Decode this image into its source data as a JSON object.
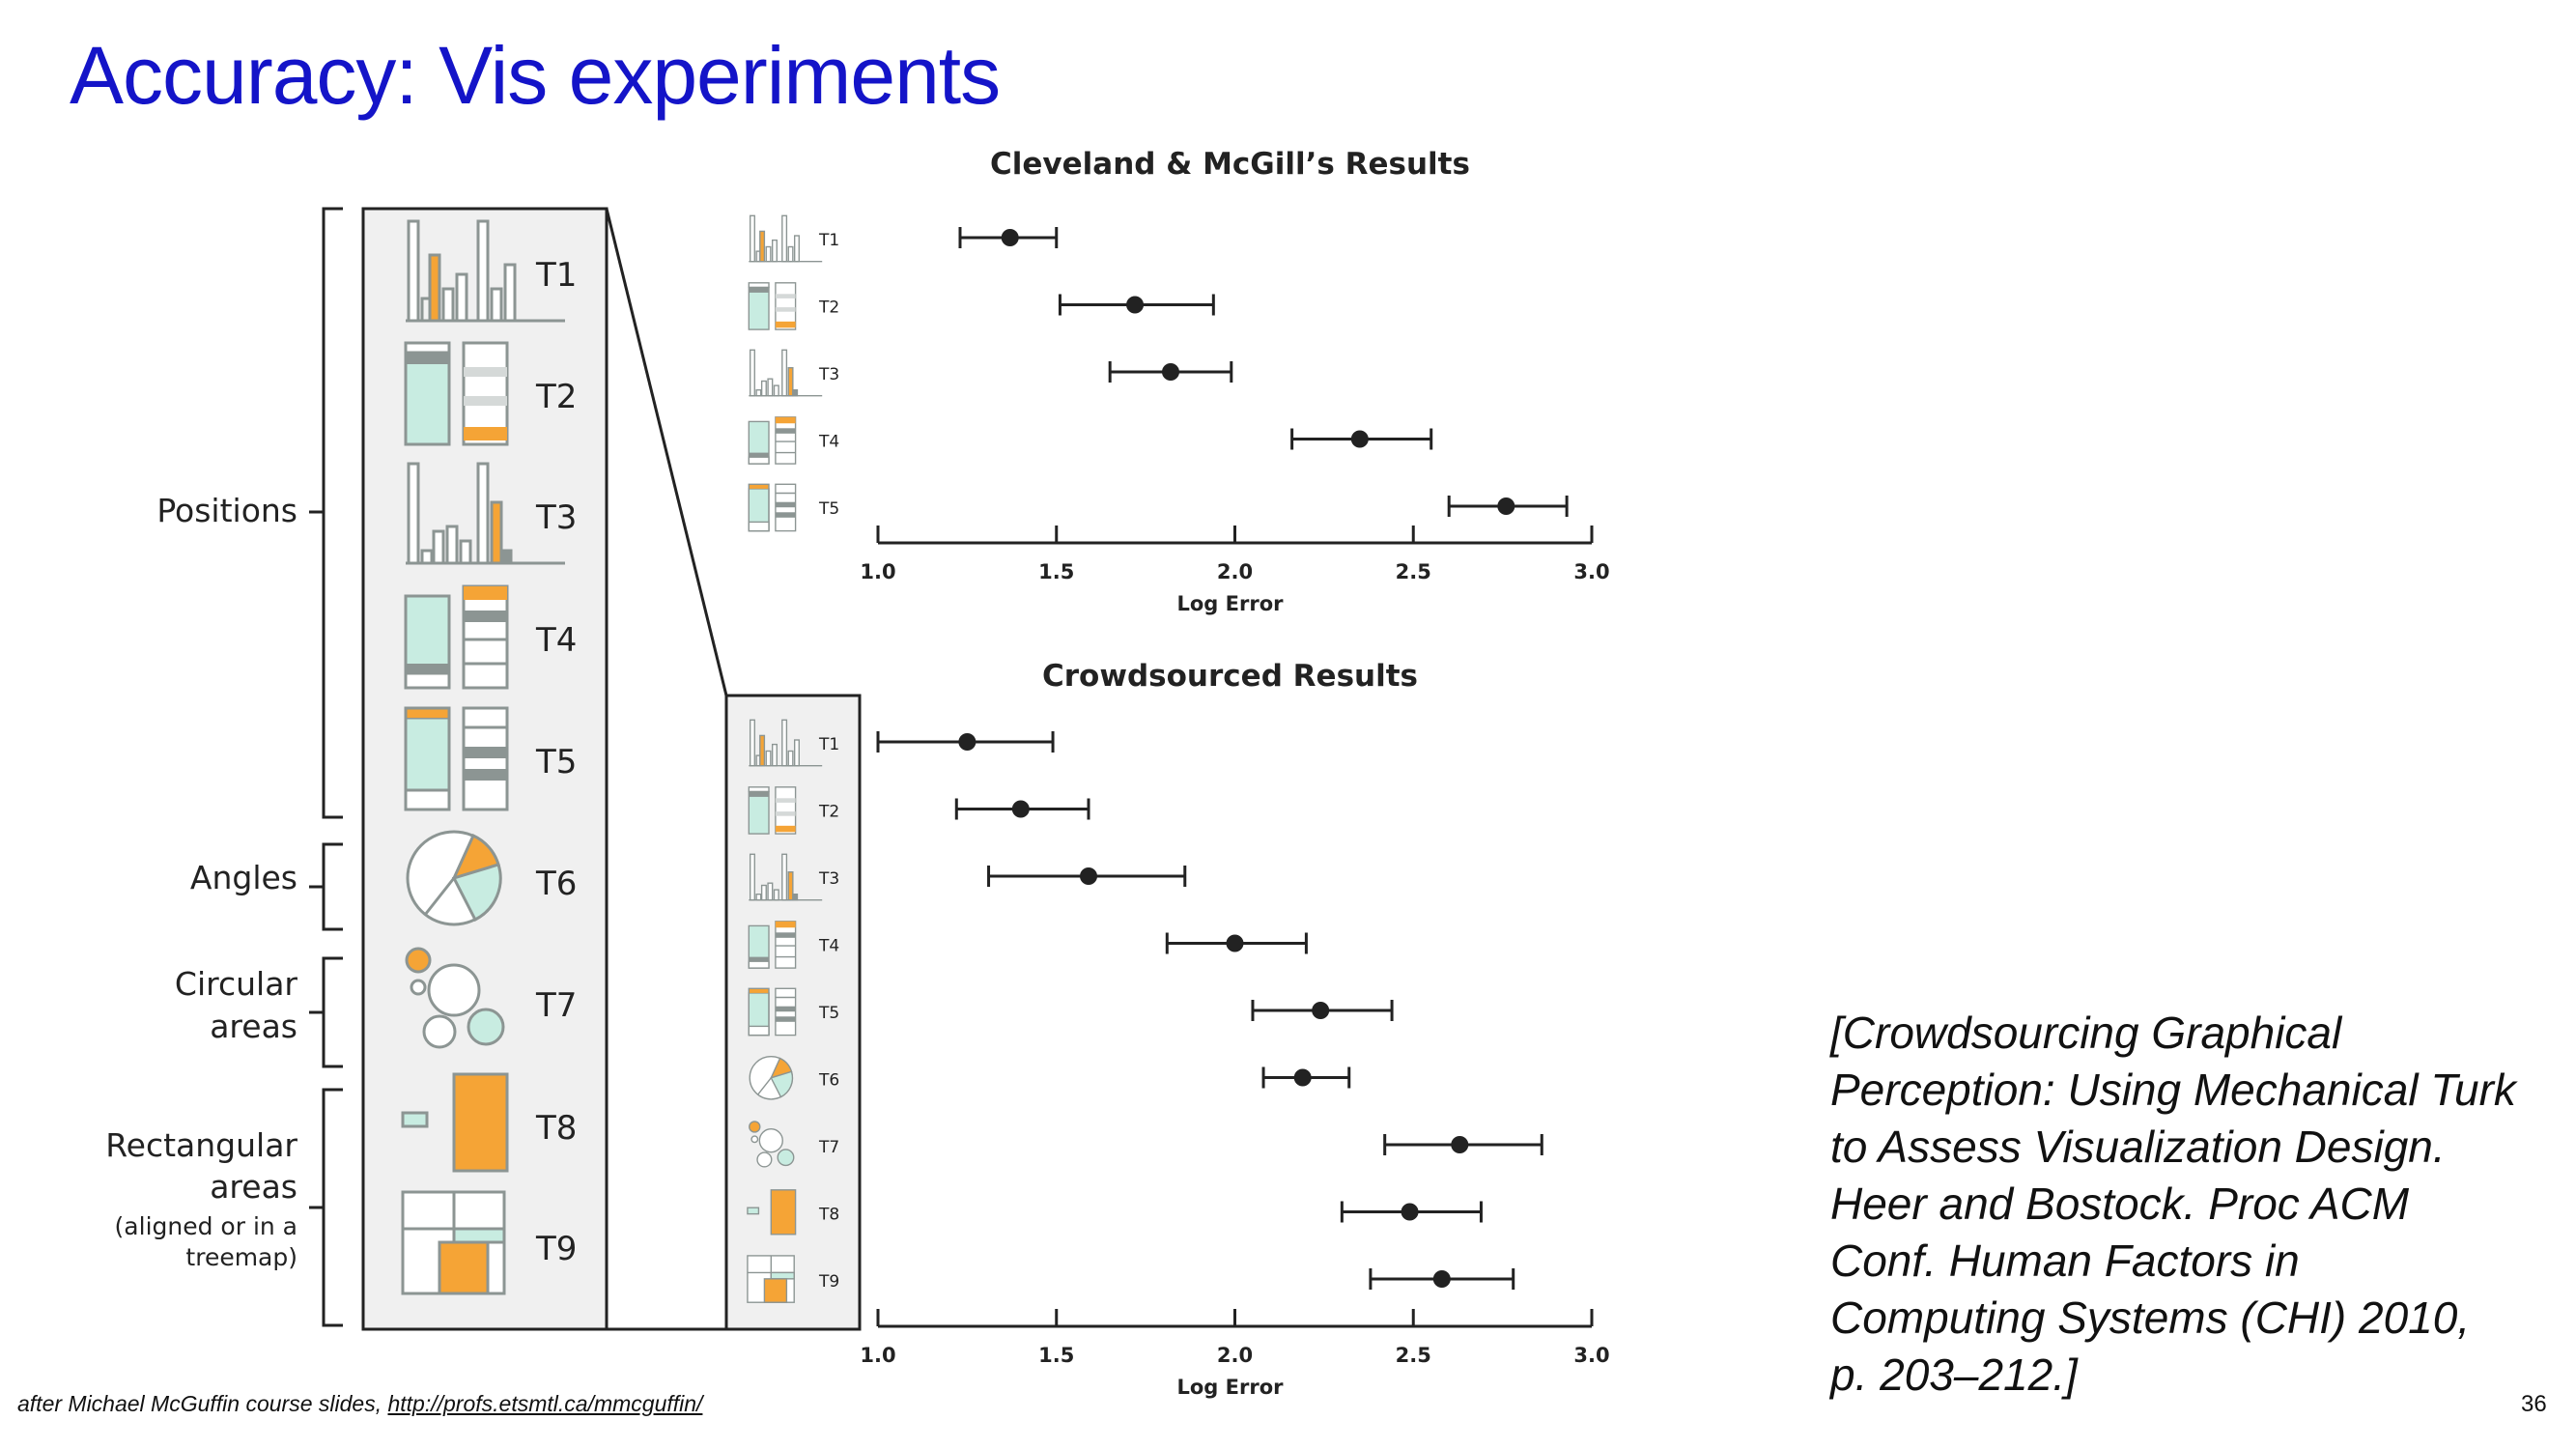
{
  "slide": {
    "title": "Accuracy: Vis experiments",
    "page_number": "36",
    "credit_text": "after Michael McGuffin course slides, ",
    "credit_link": "http://profs.etsmtl.ca/mmcguffin/",
    "citation_lines": [
      "[Crowdsourcing Graphical",
      "Perception: Using Mechanical Turk",
      "to Assess Visualization Design.",
      "Heer and Bostock. Proc ACM",
      "Conf. Human Factors in",
      "Computing Systems (CHI) 2010,",
      "p. 203–212.]"
    ]
  },
  "colors": {
    "title": "#1414c8",
    "orange": "#f5a436",
    "mint": "#c8ece1",
    "icon_gray": "#8c9593",
    "ink": "#222222"
  },
  "task_groups": [
    {
      "label_lines": [
        "Positions"
      ],
      "tasks": [
        "T1",
        "T2",
        "T3",
        "T4",
        "T5"
      ]
    },
    {
      "label_lines": [
        "Angles"
      ],
      "tasks": [
        "T6"
      ]
    },
    {
      "label_lines": [
        "Circular",
        "areas"
      ],
      "tasks": [
        "T7"
      ]
    },
    {
      "label_lines": [
        "Rectangular",
        "areas",
        "(aligned or in a",
        "treemap)"
      ],
      "tasks": [
        "T8",
        "T9"
      ]
    }
  ],
  "task_icons": [
    "bar-chart",
    "stacked-bar",
    "bar-chart-grouped",
    "stacked-bar-dual",
    "stacked-bar-top",
    "pie-chart",
    "bubbles",
    "rectangles",
    "treemap"
  ],
  "chart_data": [
    {
      "type": "scatter",
      "title": "Cleveland & McGill’s  Results",
      "xlabel": "Log Error",
      "ylabel": "",
      "xlim": [
        1.0,
        3.0
      ],
      "xticks": [
        "1.0",
        "1.5",
        "2.0",
        "2.5",
        "3.0"
      ],
      "categories": [
        "T1",
        "T2",
        "T3",
        "T4",
        "T5"
      ],
      "series": [
        {
          "values": [
            1.37,
            1.72,
            1.82,
            2.35,
            2.76
          ],
          "ci_low": [
            1.23,
            1.51,
            1.65,
            2.16,
            2.6
          ],
          "ci_high": [
            1.5,
            1.94,
            1.99,
            2.55,
            2.93
          ]
        }
      ],
      "grid": false
    },
    {
      "type": "scatter",
      "title": "Crowdsourced Results",
      "xlabel": "Log Error",
      "ylabel": "",
      "xlim": [
        1.0,
        3.0
      ],
      "xticks": [
        "1.0",
        "1.5",
        "2.0",
        "2.5",
        "3.0"
      ],
      "categories": [
        "T1",
        "T2",
        "T3",
        "T4",
        "T5",
        "T6",
        "T7",
        "T8",
        "T9"
      ],
      "series": [
        {
          "values": [
            1.25,
            1.4,
            1.59,
            2.0,
            2.24,
            2.19,
            2.63,
            2.49,
            2.58
          ],
          "ci_low": [
            1.0,
            1.22,
            1.31,
            1.81,
            2.05,
            2.08,
            2.42,
            2.3,
            2.38
          ],
          "ci_high": [
            1.49,
            1.59,
            1.86,
            2.2,
            2.44,
            2.32,
            2.86,
            2.69,
            2.78
          ]
        }
      ],
      "grid": false
    }
  ]
}
